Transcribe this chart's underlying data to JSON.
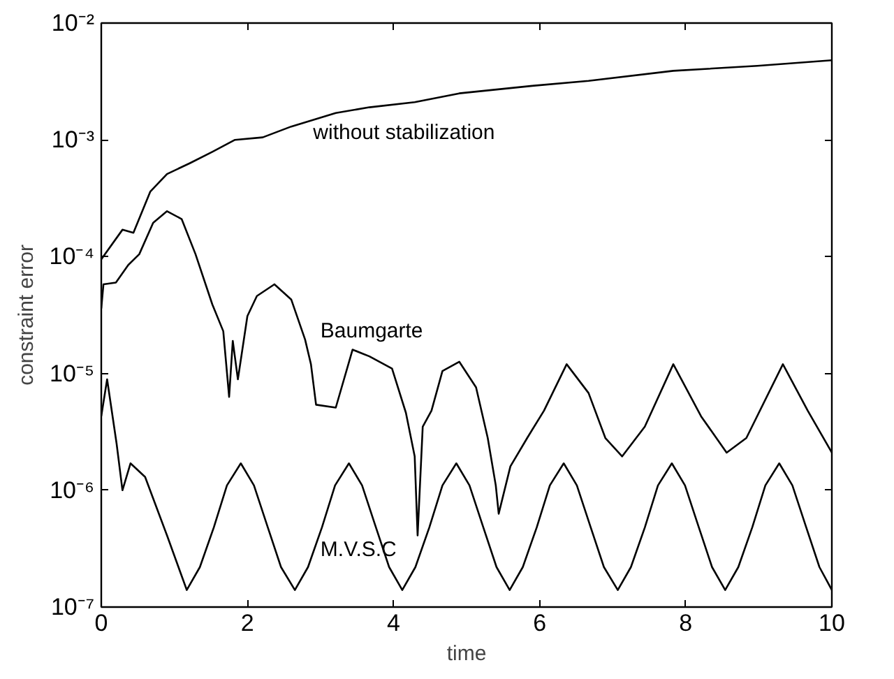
{
  "chart_data": {
    "type": "line",
    "xlabel": "time",
    "ylabel": "constraint error",
    "log": "y",
    "grid": false,
    "legend": false,
    "marker": "none",
    "line_style": "solid",
    "xlim": [
      0,
      10
    ],
    "xticks": [
      0,
      2,
      4,
      6,
      8,
      10
    ],
    "ylim": [
      1e-07,
      0.01
    ],
    "yticks": [
      {
        "value": 1e-07,
        "label": "10⁻⁷"
      },
      {
        "value": 1e-06,
        "label": "10⁻⁶"
      },
      {
        "value": 1e-05,
        "label": "10⁻⁵"
      },
      {
        "value": 0.0001,
        "label": "10⁻⁴"
      },
      {
        "value": 0.001,
        "label": "10⁻³"
      },
      {
        "value": 0.01,
        "label": "10⁻²"
      }
    ],
    "series": [
      {
        "name": "without stabilization",
        "color": "#000000",
        "x": [
          0,
          0.29,
          0.44,
          0.67,
          0.9,
          1.21,
          1.52,
          1.83,
          2.21,
          2.6,
          3.21,
          3.67,
          4.29,
          4.9,
          5.9,
          6.67,
          7.83,
          8.98,
          10
        ],
        "values": [
          9.5e-05,
          0.00017,
          0.00016,
          0.00036,
          0.00051,
          0.00063,
          0.00079,
          0.001,
          0.00105,
          0.0013,
          0.0017,
          0.0019,
          0.0021,
          0.0025,
          0.0029,
          0.0032,
          0.0039,
          0.0043,
          0.0048
        ]
      },
      {
        "name": "Baumgarte",
        "color": "#000000",
        "x": [
          0,
          0.03,
          0.2,
          0.37,
          0.52,
          0.71,
          0.9,
          1.1,
          1.29,
          1.52,
          1.67,
          1.75,
          1.8,
          1.87,
          2.0,
          2.13,
          2.37,
          2.6,
          2.79,
          2.87,
          2.94,
          3.21,
          3.44,
          3.67,
          3.98,
          4.17,
          4.29,
          4.33,
          4.4,
          4.52,
          4.67,
          4.9,
          5.13,
          5.29,
          5.4,
          5.44,
          5.6,
          5.83,
          6.06,
          6.37,
          6.67,
          6.9,
          7.13,
          7.44,
          7.83,
          8.21,
          8.56,
          8.83,
          9.33,
          9.67,
          10
        ],
        "values": [
          3.6e-05,
          5.8e-05,
          6e-05,
          8.5e-05,
          0.000105,
          0.000195,
          0.000245,
          0.00021,
          0.000105,
          3.9e-05,
          2.3e-05,
          6.3e-06,
          1.9e-05,
          8.9e-06,
          3.1e-05,
          4.6e-05,
          5.8e-05,
          4.3e-05,
          1.95e-05,
          1.2e-05,
          5.4e-06,
          5.1e-06,
          1.6e-05,
          1.4e-05,
          1.1e-05,
          4.6e-06,
          1.95e-06,
          4.1e-07,
          3.5e-06,
          4.8e-06,
          1.05e-05,
          1.26e-05,
          7.6e-06,
          2.8e-06,
          1.1e-06,
          6.3e-07,
          1.6e-06,
          2.8e-06,
          4.8e-06,
          1.2e-05,
          6.8e-06,
          2.8e-06,
          1.95e-06,
          3.5e-06,
          1.2e-05,
          4.3e-06,
          2.1e-06,
          2.8e-06,
          1.2e-05,
          4.8e-06,
          2.1e-06
        ]
      },
      {
        "name": "M.V.S.C",
        "color": "#000000",
        "x": [
          0,
          0.08,
          0.21,
          0.29,
          0.4,
          0.6,
          0.9,
          1.17,
          1.35,
          1.54,
          1.72,
          1.91,
          2.09,
          2.28,
          2.46,
          2.65,
          2.83,
          3.02,
          3.2,
          3.39,
          3.57,
          3.76,
          3.94,
          4.12,
          4.3,
          4.49,
          4.67,
          4.86,
          5.04,
          5.23,
          5.41,
          5.59,
          5.77,
          5.96,
          6.14,
          6.33,
          6.51,
          6.7,
          6.88,
          7.07,
          7.25,
          7.44,
          7.62,
          7.81,
          7.99,
          8.18,
          8.36,
          8.54,
          8.72,
          8.91,
          9.09,
          9.28,
          9.46,
          9.65,
          9.83,
          10
        ],
        "values": [
          4.3e-06,
          8.9e-06,
          2.5e-06,
          1e-06,
          1.7e-06,
          1.3e-06,
          4.1e-07,
          1.4e-07,
          2.2e-07,
          4.8e-07,
          1.1e-06,
          1.7e-06,
          1.1e-06,
          4.8e-07,
          2.2e-07,
          1.4e-07,
          2.2e-07,
          4.8e-07,
          1.1e-06,
          1.7e-06,
          1.1e-06,
          4.8e-07,
          2.2e-07,
          1.4e-07,
          2.2e-07,
          4.8e-07,
          1.1e-06,
          1.7e-06,
          1.1e-06,
          4.8e-07,
          2.2e-07,
          1.4e-07,
          2.2e-07,
          4.8e-07,
          1.1e-06,
          1.7e-06,
          1.1e-06,
          4.8e-07,
          2.2e-07,
          1.4e-07,
          2.2e-07,
          4.8e-07,
          1.1e-06,
          1.7e-06,
          1.1e-06,
          4.8e-07,
          2.2e-07,
          1.4e-07,
          2.2e-07,
          4.8e-07,
          1.1e-06,
          1.7e-06,
          1.1e-06,
          4.8e-07,
          2.2e-07,
          1.4e-07
        ]
      }
    ]
  }
}
